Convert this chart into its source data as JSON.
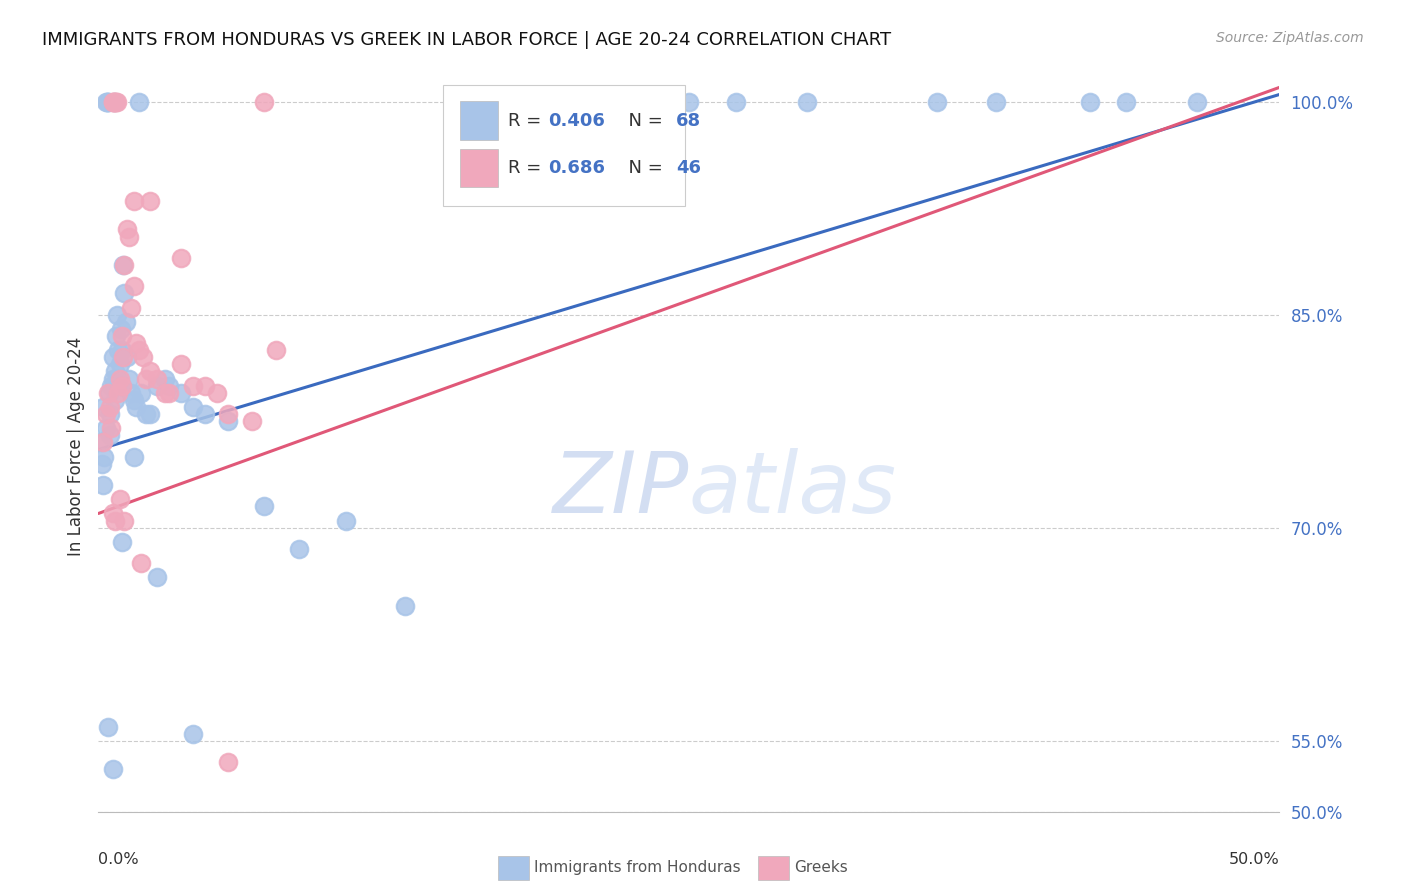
{
  "title": "IMMIGRANTS FROM HONDURAS VS GREEK IN LABOR FORCE | AGE 20-24 CORRELATION CHART",
  "source": "Source: ZipAtlas.com",
  "ylabel": "In Labor Force | Age 20-24",
  "xmin": 0.0,
  "xmax": 50.0,
  "ymin": 50.0,
  "ymax": 101.5,
  "y_ticks": [
    50.0,
    55.0,
    70.0,
    85.0,
    100.0
  ],
  "y_tick_labels": [
    "50.0%",
    "55.0%",
    "70.0%",
    "85.0%",
    "100.0%"
  ],
  "blue_R": 0.406,
  "blue_N": 68,
  "pink_R": 0.686,
  "pink_N": 46,
  "blue_dot_color": "#a8c4e8",
  "pink_dot_color": "#f0a8bc",
  "blue_line_color": "#3a6abf",
  "pink_line_color": "#e05878",
  "stat_color": "#4472c4",
  "watermark_color": "#ccd8f0",
  "background_color": "#ffffff",
  "blue_x": [
    0.1,
    0.15,
    0.2,
    0.2,
    0.25,
    0.3,
    0.3,
    0.35,
    0.4,
    0.4,
    0.45,
    0.5,
    0.5,
    0.55,
    0.6,
    0.6,
    0.65,
    0.7,
    0.7,
    0.75,
    0.8,
    0.8,
    0.85,
    0.9,
    0.95,
    1.0,
    1.0,
    1.05,
    1.1,
    1.15,
    1.2,
    1.3,
    1.4,
    1.5,
    1.6,
    1.7,
    1.8,
    2.0,
    2.2,
    2.5,
    2.8,
    3.0,
    3.5,
    4.0,
    4.5,
    5.5,
    7.0,
    8.5,
    10.5,
    13.0,
    16.5,
    17.5,
    20.0,
    22.5,
    25.0,
    27.0,
    30.0,
    35.5,
    38.0,
    42.0,
    43.5,
    46.5,
    0.4,
    0.6,
    1.0,
    1.5,
    2.5,
    4.0
  ],
  "blue_y": [
    76.0,
    74.5,
    73.0,
    78.5,
    75.0,
    77.0,
    100.0,
    100.0,
    100.0,
    100.0,
    79.5,
    78.0,
    76.5,
    80.0,
    82.0,
    80.5,
    100.0,
    79.0,
    81.0,
    83.5,
    85.0,
    80.5,
    82.5,
    81.5,
    84.0,
    82.5,
    80.0,
    88.5,
    86.5,
    84.5,
    82.0,
    80.5,
    79.5,
    79.0,
    78.5,
    100.0,
    79.5,
    78.0,
    78.0,
    80.0,
    80.5,
    80.0,
    79.5,
    78.5,
    78.0,
    77.5,
    71.5,
    68.5,
    70.5,
    64.5,
    100.0,
    100.0,
    100.0,
    100.0,
    100.0,
    100.0,
    100.0,
    100.0,
    100.0,
    100.0,
    100.0,
    100.0,
    56.0,
    53.0,
    69.0,
    75.0,
    66.5,
    55.5
  ],
  "pink_x": [
    0.2,
    0.3,
    0.4,
    0.5,
    0.55,
    0.6,
    0.6,
    0.65,
    0.7,
    0.75,
    0.8,
    0.85,
    0.9,
    1.0,
    1.0,
    1.05,
    1.1,
    1.2,
    1.3,
    1.4,
    1.5,
    1.6,
    1.7,
    1.9,
    2.0,
    2.2,
    2.5,
    2.8,
    3.0,
    3.5,
    4.0,
    4.5,
    5.0,
    5.5,
    6.5,
    7.0,
    1.5,
    0.6,
    0.7,
    0.9,
    1.1,
    1.8,
    2.2,
    3.5,
    5.5,
    7.5
  ],
  "pink_y": [
    76.0,
    78.0,
    79.5,
    78.5,
    77.0,
    100.0,
    100.0,
    100.0,
    100.0,
    100.0,
    100.0,
    79.5,
    80.5,
    80.0,
    83.5,
    82.0,
    88.5,
    91.0,
    90.5,
    85.5,
    87.0,
    83.0,
    82.5,
    82.0,
    80.5,
    81.0,
    80.5,
    79.5,
    79.5,
    81.5,
    80.0,
    80.0,
    79.5,
    78.0,
    77.5,
    100.0,
    93.0,
    71.0,
    70.5,
    72.0,
    70.5,
    67.5,
    93.0,
    89.0,
    53.5,
    82.5
  ],
  "blue_line_x0": 0.0,
  "blue_line_y0": 75.5,
  "blue_line_x1": 50.0,
  "blue_line_y1": 100.5,
  "pink_line_x0": 0.0,
  "pink_line_y0": 71.0,
  "pink_line_x1": 50.0,
  "pink_line_y1": 101.0
}
